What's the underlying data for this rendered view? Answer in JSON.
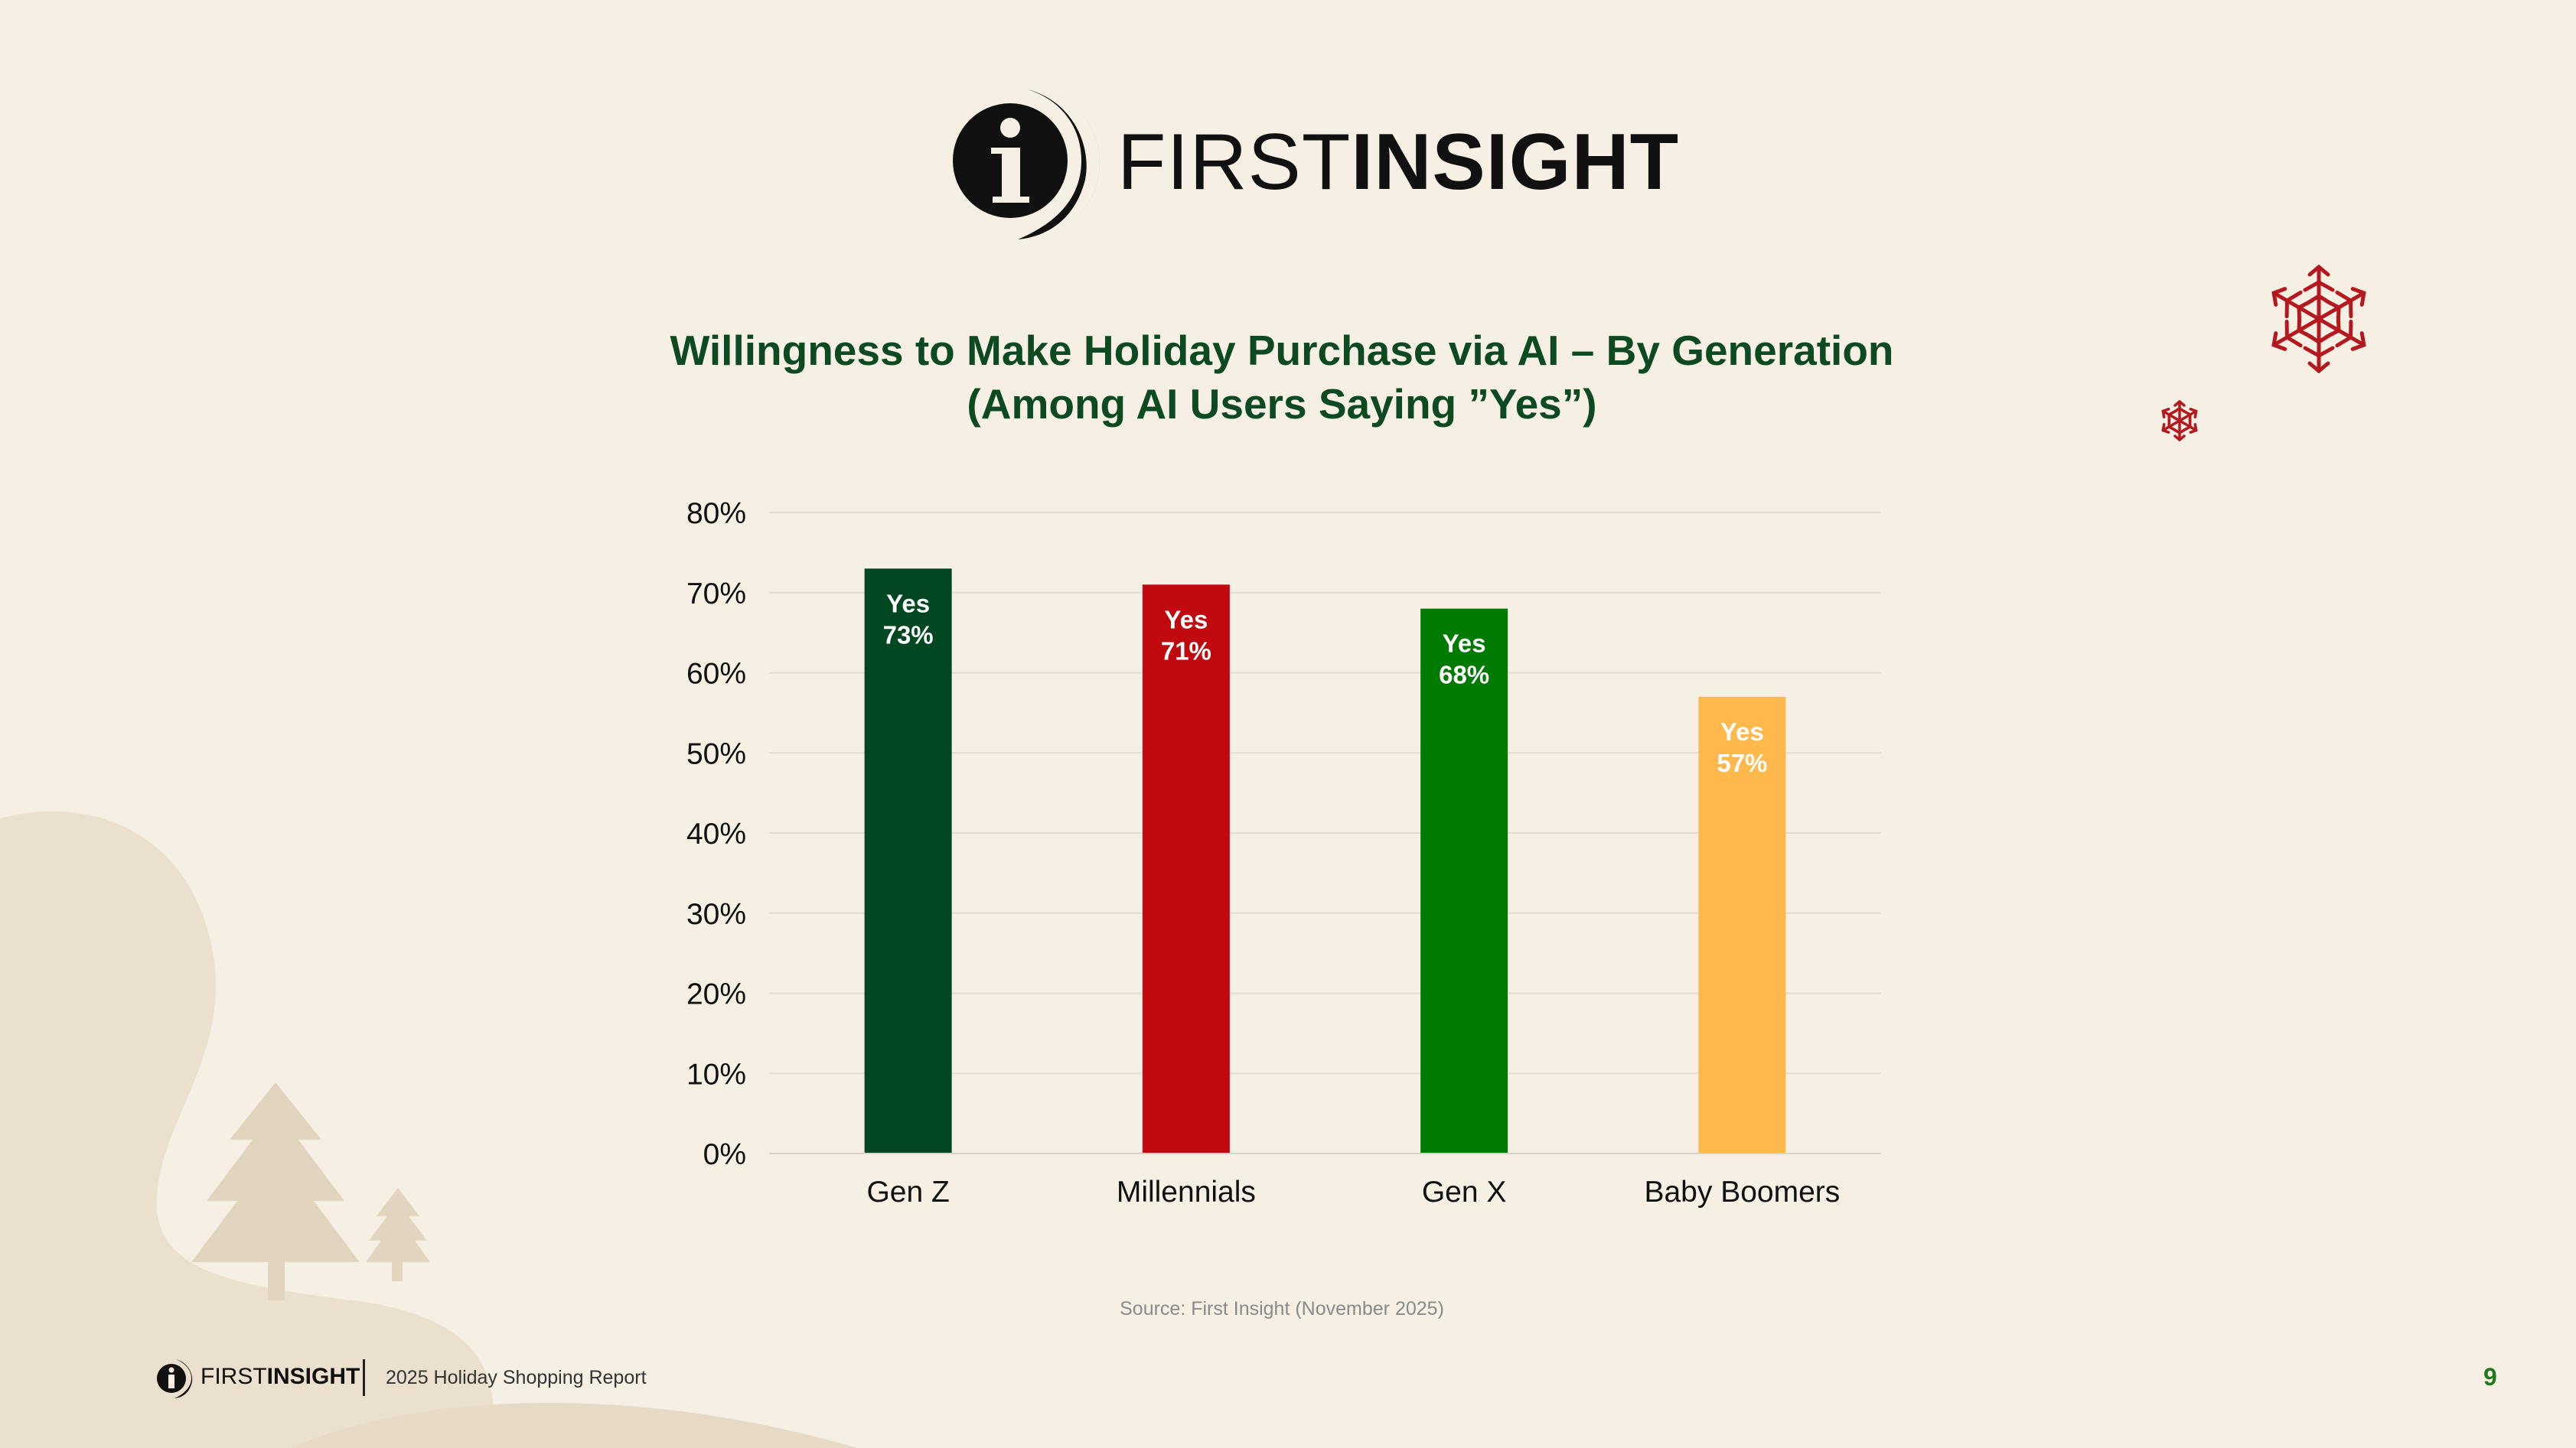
{
  "brand": {
    "logo_thin": "FIRST",
    "logo_bold": "INSIGHT",
    "logo_mark": "i"
  },
  "colors": {
    "background": "#f5efe4",
    "title": "#0d4a22",
    "decor": "#ebe0cd",
    "snowflake": "#b5191f",
    "page_number": "#1f7a1f"
  },
  "chart_data": {
    "type": "bar",
    "title_line1": "Willingness to Make Holiday Purchase via AI – By Generation",
    "title_line2": "(Among AI Users Saying ”Yes”)",
    "categories": [
      "Gen Z",
      "Millennials",
      "Gen X",
      "Baby Boomers"
    ],
    "values": [
      73,
      71,
      68,
      57
    ],
    "bar_labels": [
      "Yes",
      "Yes",
      "Yes",
      "Yes"
    ],
    "value_labels": [
      "73%",
      "71%",
      "68%",
      "57%"
    ],
    "bar_colors": [
      "#004722",
      "#c00a0f",
      "#017a02",
      "#ffb84b"
    ],
    "y_ticks": [
      "0%",
      "10%",
      "20%",
      "30%",
      "40%",
      "50%",
      "60%",
      "70%",
      "80%"
    ],
    "ylim": [
      0,
      80
    ],
    "grid": true,
    "xlabel": "",
    "ylabel": ""
  },
  "source": "Source: First Insight (November 2025)",
  "footer": {
    "report_title": "2025 Holiday Shopping Report",
    "page_number": "9"
  }
}
